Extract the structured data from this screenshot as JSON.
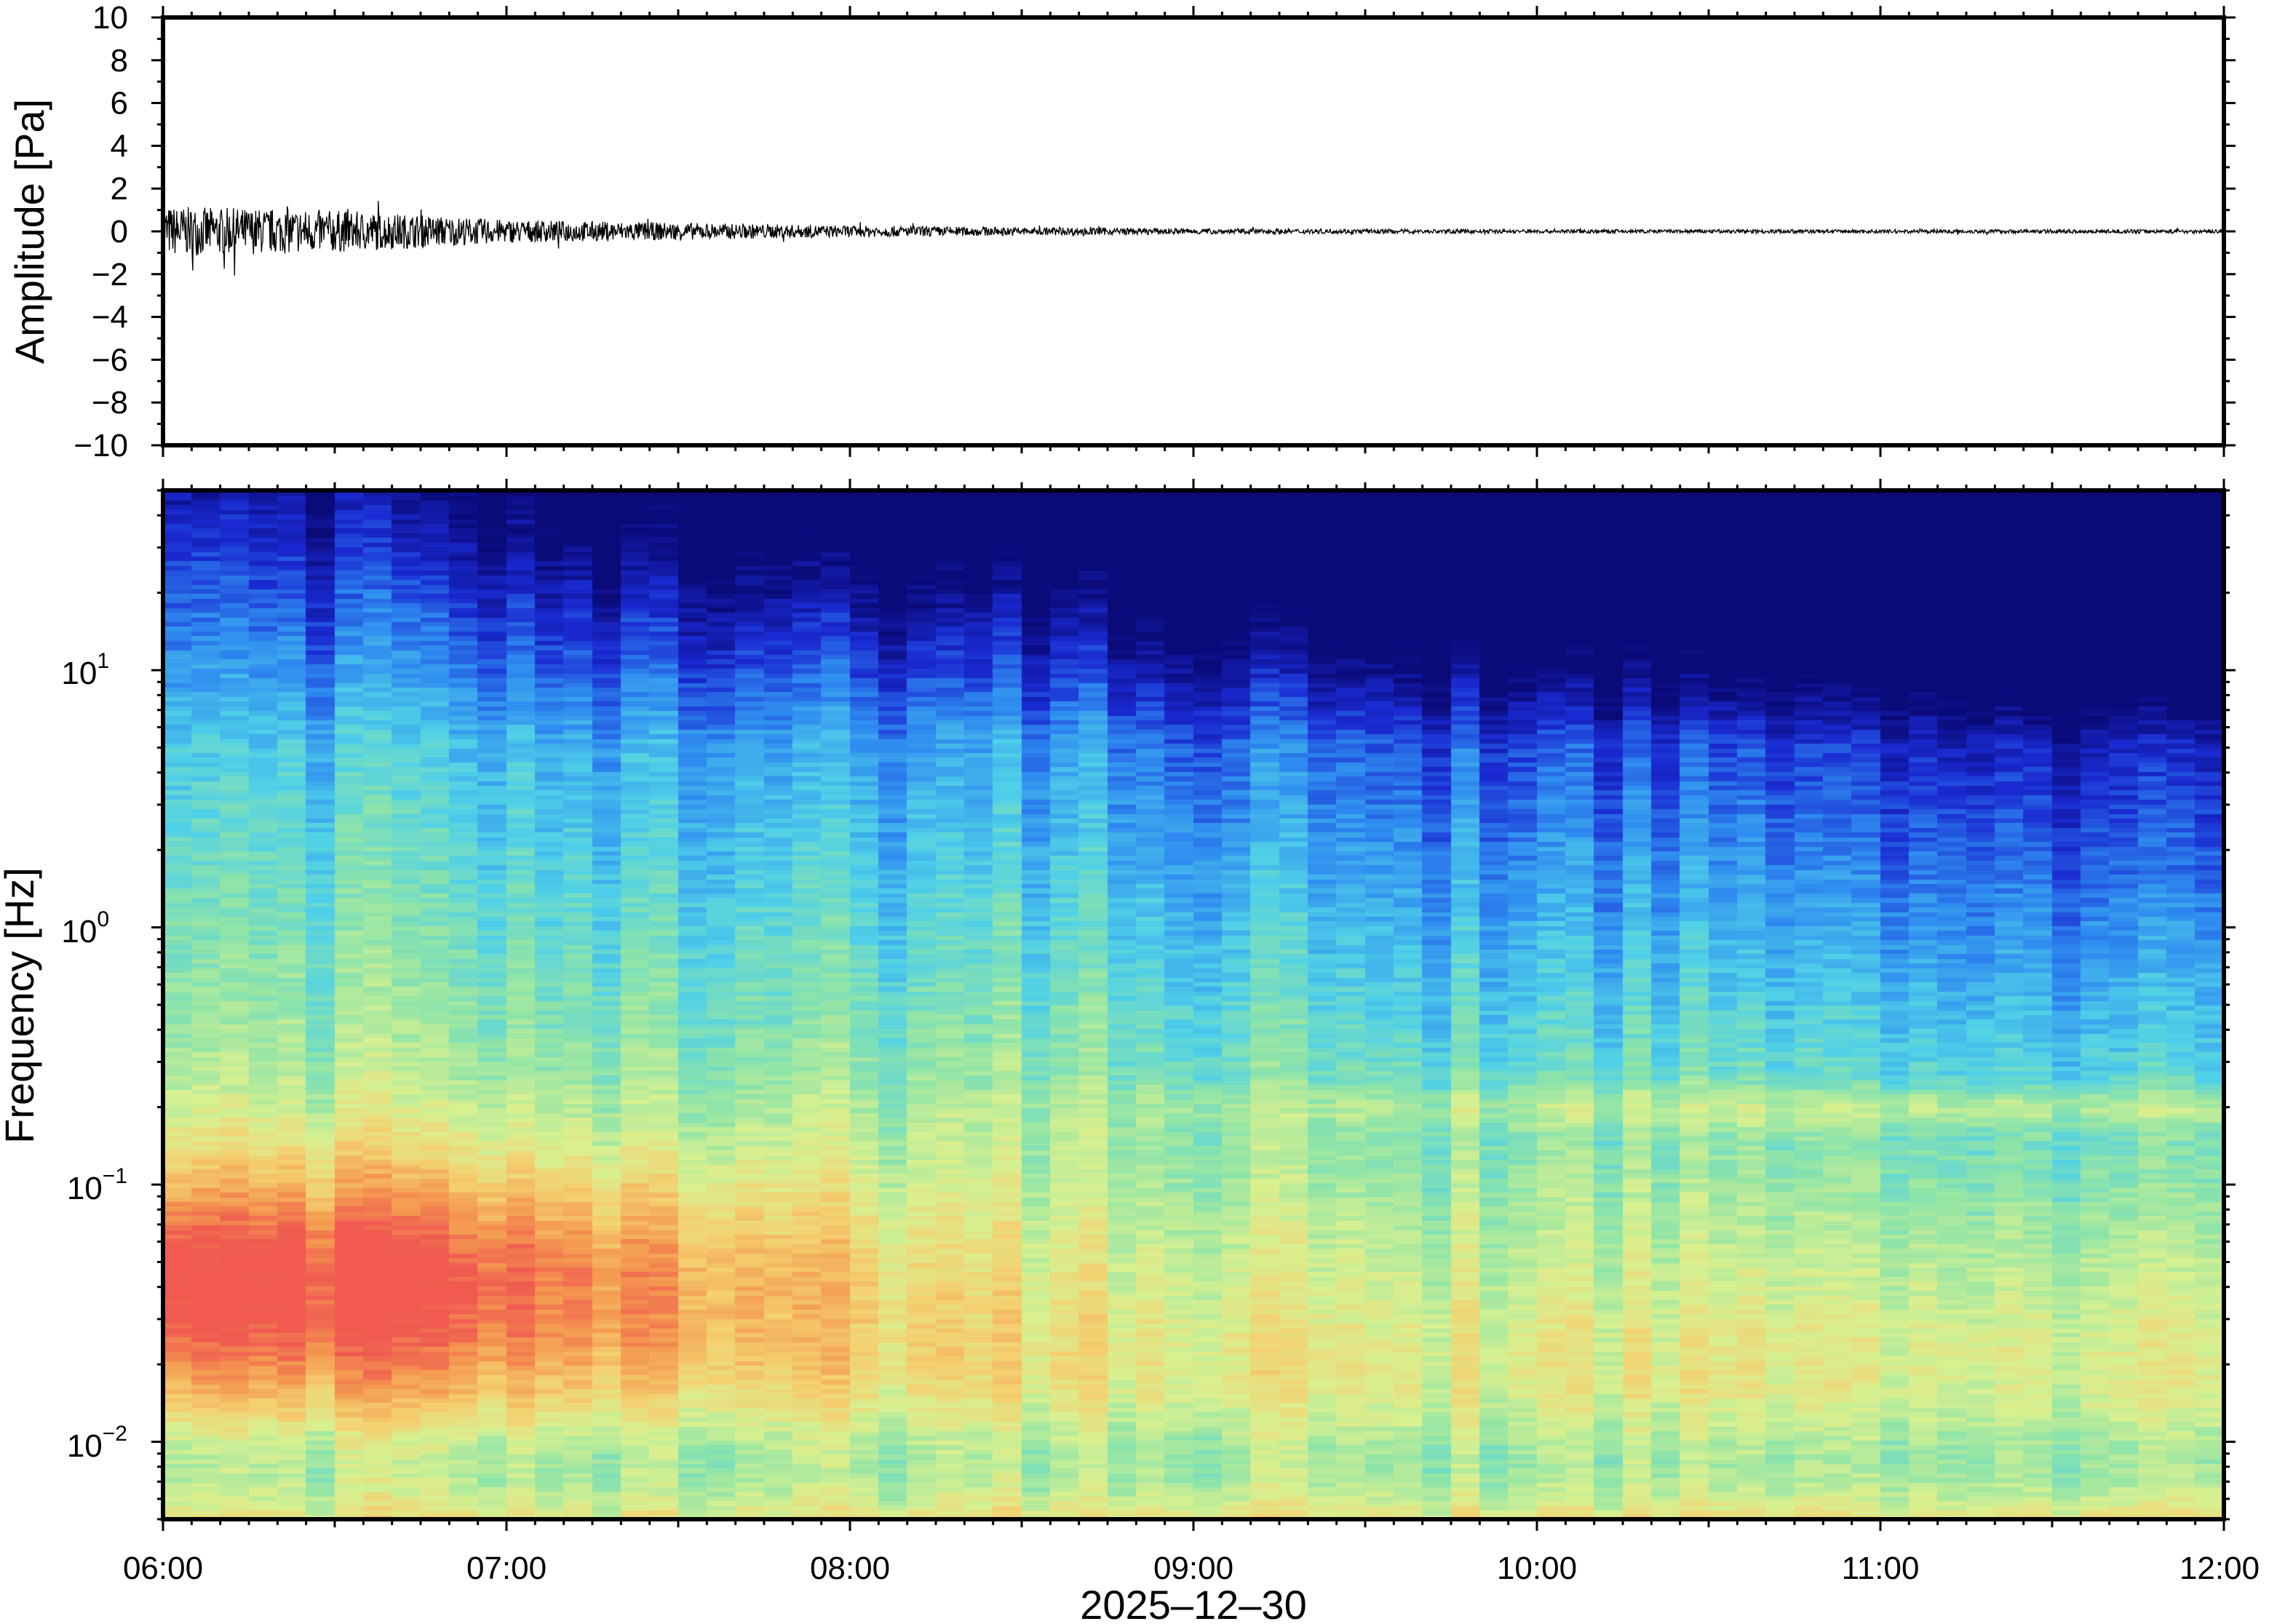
{
  "chart_data": [
    {
      "type": "line",
      "title": "",
      "xlabel": "",
      "ylabel": "Amplitude [Pa]",
      "xlim": [
        "06:00",
        "12:00"
      ],
      "ylim": [
        -10,
        10
      ],
      "yticks": [
        10,
        8,
        6,
        4,
        2,
        0,
        -2,
        -4,
        -6,
        -8,
        -10
      ],
      "ytick_labels": [
        "10",
        "8",
        "6",
        "4",
        "2",
        "0",
        "−2",
        "−4",
        "−6",
        "−8",
        "−10"
      ],
      "grid": false,
      "series": [
        {
          "color": "#000000",
          "x": [
            "06:00",
            "06:30",
            "07:00",
            "07:30",
            "08:00",
            "08:30",
            "09:00",
            "09:30",
            "10:00",
            "10:30",
            "11:00",
            "11:30",
            "12:00"
          ],
          "envelope": [
            1.3,
            1.1,
            0.6,
            0.45,
            0.3,
            0.22,
            0.15,
            0.12,
            0.1,
            0.1,
            0.1,
            0.1,
            0.1
          ]
        }
      ]
    },
    {
      "type": "heatmap",
      "title": "",
      "xlabel": "2025–12–30",
      "ylabel": "Frequency [Hz]",
      "y_scale": "log",
      "xlim": [
        "06:00",
        "12:00"
      ],
      "ylim": [
        0.005,
        50
      ],
      "xtick_labels": [
        "06:00",
        "07:00",
        "08:00",
        "09:00",
        "10:00",
        "11:00",
        "12:00"
      ],
      "ytick_base": "10",
      "ytick_exponents": [
        "1",
        "0",
        "−1",
        "−2"
      ],
      "colormap": [
        "#0a0a78",
        "#1a2ad2",
        "#2f8cf0",
        "#4fd0e8",
        "#8fe4a8",
        "#d8f090",
        "#f4d070",
        "#f49a50",
        "#f05a50"
      ],
      "grid": false
    }
  ]
}
